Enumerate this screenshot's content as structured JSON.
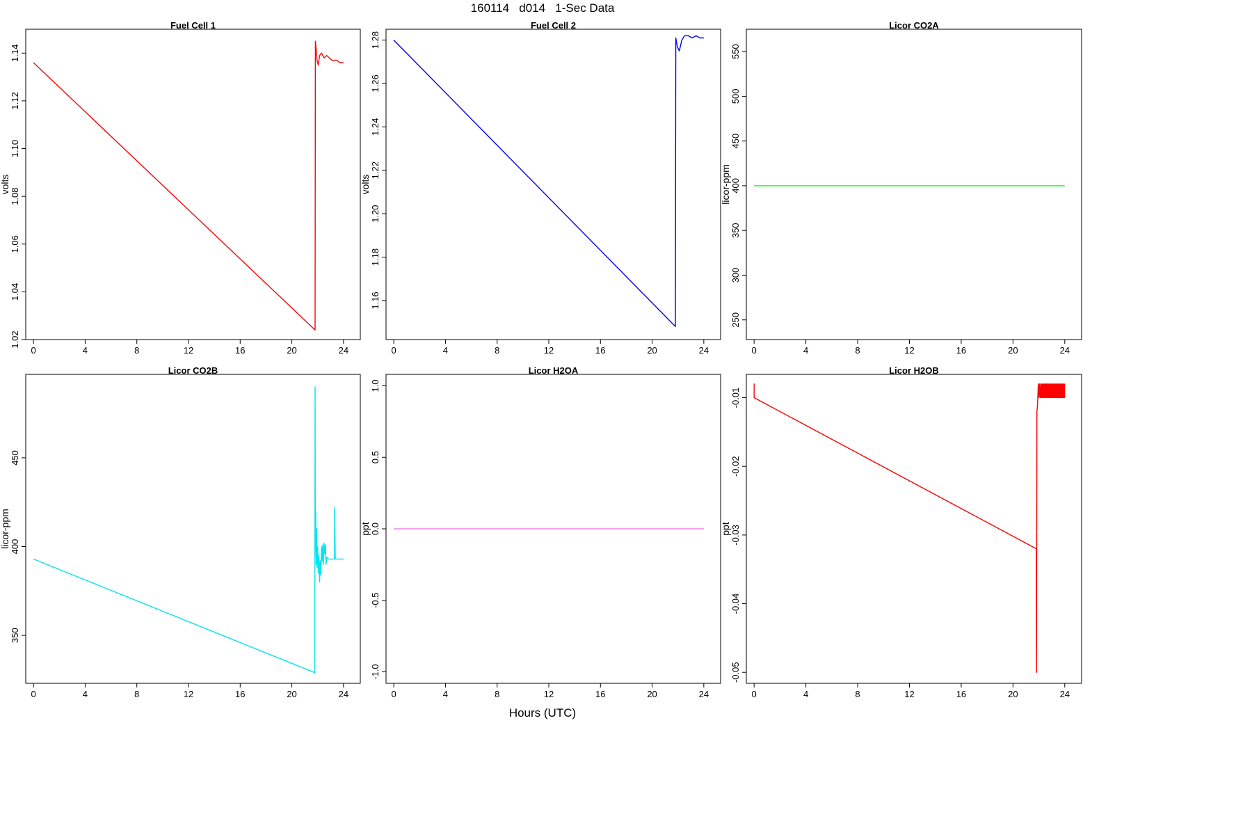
{
  "figure": {
    "title": "160114   d014   1-Sec Data",
    "xlabel": "Hours (UTC)"
  },
  "chart_data": [
    {
      "type": "line",
      "title": "Fuel Cell 1",
      "ylabel": "volts",
      "color": "#ff0000",
      "xlim": [
        -0.6,
        25.3
      ],
      "ylim": [
        1.02,
        1.15
      ],
      "xticks": [
        0,
        4,
        8,
        12,
        16,
        20,
        24
      ],
      "yticks": [
        1.02,
        1.04,
        1.06,
        1.08,
        1.1,
        1.12,
        1.14
      ],
      "ytick_labels": [
        "1.02",
        "1.04",
        "1.06",
        "1.08",
        "1.10",
        "1.12",
        "1.14"
      ],
      "series": [
        {
          "x": [
            0,
            21.8,
            21.82,
            21.88,
            21.95,
            22.05,
            22.15,
            22.3,
            22.5,
            22.7,
            22.9,
            23.1,
            23.3,
            23.5,
            23.7,
            23.9,
            24.0
          ],
          "y": [
            1.136,
            1.024,
            1.145,
            1.142,
            1.137,
            1.135,
            1.139,
            1.14,
            1.138,
            1.139,
            1.138,
            1.137,
            1.137,
            1.137,
            1.136,
            1.136,
            1.136
          ]
        }
      ]
    },
    {
      "type": "line",
      "title": "Fuel Cell 2",
      "ylabel": "volts",
      "color": "#0000ff",
      "xlim": [
        -0.6,
        25.3
      ],
      "ylim": [
        1.142,
        1.285
      ],
      "xticks": [
        0,
        4,
        8,
        12,
        16,
        20,
        24
      ],
      "yticks": [
        1.16,
        1.18,
        1.2,
        1.22,
        1.24,
        1.26,
        1.28
      ],
      "ytick_labels": [
        "1.16",
        "1.18",
        "1.20",
        "1.22",
        "1.24",
        "1.26",
        "1.28"
      ],
      "series": [
        {
          "x": [
            0,
            21.8,
            21.83,
            21.95,
            22.1,
            22.3,
            22.5,
            22.8,
            23.1,
            23.4,
            23.7,
            24.0
          ],
          "y": [
            1.28,
            1.148,
            1.281,
            1.277,
            1.275,
            1.28,
            1.282,
            1.282,
            1.281,
            1.282,
            1.281,
            1.281
          ]
        }
      ]
    },
    {
      "type": "line",
      "title": "Licor CO2A",
      "ylabel": "licor-ppm",
      "color": "#00ff00",
      "xlim": [
        -0.6,
        25.3
      ],
      "ylim": [
        228,
        575
      ],
      "xticks": [
        0,
        4,
        8,
        12,
        16,
        20,
        24
      ],
      "yticks": [
        250,
        300,
        350,
        400,
        450,
        500,
        550
      ],
      "ytick_labels": [
        "250",
        "300",
        "350",
        "400",
        "450",
        "500",
        "550"
      ],
      "series": [
        {
          "x": [
            0,
            24.0
          ],
          "y": [
            400,
            400
          ]
        }
      ]
    },
    {
      "type": "line",
      "title": "Licor CO2B",
      "ylabel": "licor-ppm",
      "color": "#00e5ee",
      "xlim": [
        -0.6,
        25.3
      ],
      "ylim": [
        323,
        497
      ],
      "xticks": [
        0,
        4,
        8,
        12,
        16,
        20,
        24
      ],
      "yticks": [
        350,
        400,
        450
      ],
      "ytick_labels": [
        "350",
        "400",
        "450"
      ],
      "series": [
        {
          "x": [
            0,
            21.78,
            21.8,
            21.82,
            21.85,
            21.88,
            21.92,
            21.95,
            22.0,
            22.05,
            22.1,
            22.15,
            22.2,
            22.25,
            22.3,
            22.35,
            22.4,
            22.45,
            22.5,
            22.55,
            22.6,
            22.65,
            22.7,
            22.8,
            22.9,
            23.0,
            23.2,
            23.3,
            23.32,
            23.36,
            23.4,
            23.6,
            23.8,
            24.0
          ],
          "y": [
            393,
            329,
            490,
            398,
            420,
            390,
            410,
            388,
            400,
            385,
            395,
            380,
            392,
            384,
            400,
            392,
            401,
            390,
            402,
            396,
            401,
            390,
            394,
            393,
            393,
            393,
            393,
            393,
            422,
            394,
            393,
            393,
            393,
            393
          ]
        }
      ]
    },
    {
      "type": "line",
      "title": "Licor H2OA",
      "ylabel": "ppt",
      "color": "#ee82ee",
      "xlim": [
        -0.6,
        25.3
      ],
      "ylim": [
        -1.08,
        1.08
      ],
      "xticks": [
        0,
        4,
        8,
        12,
        16,
        20,
        24
      ],
      "yticks": [
        -1.0,
        -0.5,
        0.0,
        0.5,
        1.0
      ],
      "ytick_labels": [
        "-1.0",
        "-0.5",
        "0.0",
        "0.5",
        "1.0"
      ],
      "series": [
        {
          "x": [
            0,
            24.0
          ],
          "y": [
            0,
            0
          ]
        }
      ]
    },
    {
      "type": "line",
      "title": "Licor H2OB",
      "ylabel": "ppt",
      "color": "#ff0000",
      "xlim": [
        -0.6,
        25.3
      ],
      "ylim": [
        -0.0516,
        -0.0066
      ],
      "xticks": [
        0,
        4,
        8,
        12,
        16,
        20,
        24
      ],
      "yticks": [
        -0.05,
        -0.04,
        -0.03,
        -0.02,
        -0.01
      ],
      "ytick_labels": [
        "-0.05",
        "-0.04",
        "-0.03",
        "-0.02",
        "-0.01"
      ],
      "series": [
        {
          "x": [
            0,
            0.0,
            0.0,
            21.8,
            21.82,
            21.85,
            21.9,
            21.95,
            22.0,
            22.05,
            22.1,
            22.15,
            22.2,
            22.3,
            22.4,
            22.5,
            22.6,
            22.7,
            22.8,
            22.9,
            23.0,
            23.1,
            23.2,
            23.3,
            23.4,
            23.5,
            23.6,
            23.7,
            23.8,
            23.9,
            24.0
          ],
          "y": [
            -0.01,
            -0.008,
            -0.01,
            -0.032,
            -0.05,
            -0.012,
            -0.011,
            -0.008,
            -0.01,
            -0.008,
            -0.01,
            -0.008,
            -0.01,
            -0.008,
            -0.01,
            -0.008,
            -0.01,
            -0.008,
            -0.01,
            -0.008,
            -0.01,
            -0.008,
            -0.01,
            -0.008,
            -0.01,
            -0.008,
            -0.01,
            -0.008,
            -0.01,
            -0.008,
            -0.01
          ]
        }
      ],
      "bands": [
        {
          "x0": 22.15,
          "x1": 24.0,
          "y0": -0.01,
          "y1": -0.008
        }
      ]
    }
  ]
}
